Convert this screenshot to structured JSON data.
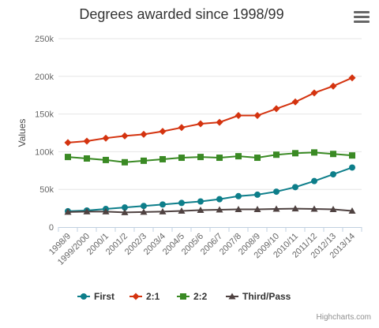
{
  "chart_data": {
    "type": "line",
    "title": "Degrees awarded since 1998/99",
    "xlabel": "",
    "ylabel": "Values",
    "ylim": [
      0,
      250000
    ],
    "y_ticks": [
      "0",
      "50k",
      "100k",
      "150k",
      "200k",
      "250k"
    ],
    "y_tick_values": [
      0,
      50000,
      100000,
      150000,
      200000,
      250000
    ],
    "grid": true,
    "legend_position": "bottom-center",
    "categories": [
      "1998/9",
      "1999/2000",
      "2000/1",
      "2001/2",
      "2002/3",
      "2003/4",
      "2004/5",
      "2005/6",
      "2006/7",
      "2007/8",
      "2008/9",
      "2009/10",
      "2010/11",
      "2011/12",
      "2012/13",
      "2013/14"
    ],
    "series": [
      {
        "name": "First",
        "color": "#0d7e8a",
        "marker": "circle",
        "values": [
          21000,
          22000,
          24000,
          26000,
          28000,
          30000,
          32000,
          34000,
          37000,
          41000,
          43000,
          47000,
          53000,
          61000,
          70000,
          79000
        ]
      },
      {
        "name": "2:1",
        "color": "#d4330f",
        "marker": "diamond",
        "values": [
          112000,
          114000,
          118000,
          121000,
          123000,
          127000,
          132000,
          137000,
          139000,
          148000,
          148000,
          157000,
          166000,
          178000,
          187000,
          198000
        ]
      },
      {
        "name": "2:2",
        "color": "#3a8a24",
        "marker": "square",
        "values": [
          93000,
          91000,
          89000,
          86000,
          88000,
          90000,
          92000,
          93000,
          92000,
          94000,
          92000,
          96000,
          98000,
          99000,
          97000,
          95000
        ]
      },
      {
        "name": "Third/Pass",
        "color": "#4f4241",
        "marker": "triangle",
        "values": [
          20000,
          20500,
          20500,
          19500,
          20000,
          20500,
          21500,
          22500,
          23000,
          23500,
          23500,
          24000,
          24500,
          24000,
          23500,
          21500
        ]
      }
    ]
  },
  "menu": {
    "icon": "hamburger-menu-icon"
  },
  "credits": "Highcharts.com"
}
